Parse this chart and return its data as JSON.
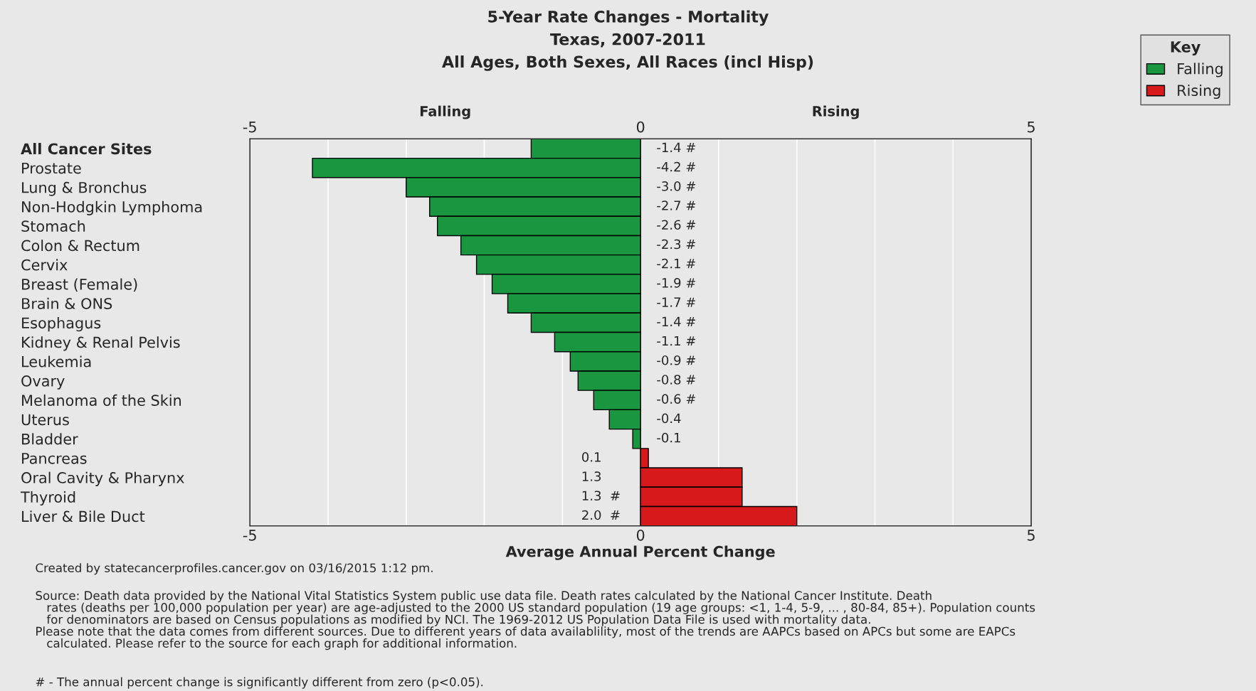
{
  "chart_data": {
    "type": "bar",
    "orientation": "horizontal",
    "title": "5-Year Rate Changes - Mortality\nTexas, 2007-2011\nAll Ages, Both Sexes, All Races (incl Hisp)",
    "xlabel": "Average Annual Percent Change",
    "legend_title": "Key",
    "legend": "top right",
    "grid": "x",
    "categories": [
      "All Cancer Sites",
      "Prostate",
      "Lung & Bronchus",
      "Non-Hodgkin Lymphoma",
      "Stomach",
      "Colon & Rectum",
      "Cervix",
      "Breast (Female)",
      "Brain & ONS",
      "Esophagus",
      "Kidney & Renal Pelvis",
      "Leukemia",
      "Ovary",
      "Melanoma of the Skin",
      "Uterus",
      "Bladder",
      "Pancreas",
      "Oral Cavity & Pharynx",
      "Thyroid",
      "Liver & Bile Duct"
    ],
    "series": [
      {
        "name": "Falling",
        "color": "#1a9641",
        "values": [
          -1.4,
          -4.2,
          -3.0,
          -2.7,
          -2.6,
          -2.3,
          -2.1,
          -1.9,
          -1.7,
          -1.4,
          -1.1,
          -0.9,
          -0.8,
          -0.6,
          -0.4,
          -0.1,
          null,
          null,
          null,
          null
        ],
        "value_labels": [
          "-1.4 #",
          "-4.2 #",
          "-3.0 #",
          "-2.7 #",
          "-2.6 #",
          "-2.3 #",
          "-2.1 #",
          "-1.9 #",
          "-1.7 #",
          "-1.4 #",
          "-1.1 #",
          "-0.9 #",
          "-0.8 #",
          "-0.6 #",
          "-0.4",
          "-0.1",
          null,
          null,
          null,
          null
        ]
      },
      {
        "name": "Rising",
        "color": "#d7191c",
        "values": [
          null,
          null,
          null,
          null,
          null,
          null,
          null,
          null,
          null,
          null,
          null,
          null,
          null,
          null,
          null,
          null,
          0.1,
          1.3,
          1.3,
          2.0
        ],
        "value_labels": [
          null,
          null,
          null,
          null,
          null,
          null,
          null,
          null,
          null,
          null,
          null,
          null,
          null,
          null,
          null,
          null,
          "0.1",
          "1.3",
          "1.3  #",
          "2.0  #"
        ]
      }
    ],
    "xlim": [
      -5,
      5
    ],
    "xticks": [
      -5,
      {
        "value": -4,
        "label": null
      },
      {
        "value": -3,
        "label": null
      },
      {
        "value": -2,
        "label": null
      },
      {
        "value": -1,
        "label": null
      },
      0,
      {
        "value": 1,
        "label": null
      },
      {
        "value": 2,
        "label": null
      },
      {
        "value": 3,
        "label": null
      },
      {
        "value": 4,
        "label": null
      },
      5
    ],
    "x2lim": [
      -5,
      5
    ],
    "x2ticks": [
      -5,
      0,
      5
    ],
    "annotations": [
      "Falling",
      "Rising",
      "Created by statecancerprofiles.cancer.gov on 03/16/2015 1:12 pm.",
      "Source: Death data provided by the National Vital Statistics System public use data file. Death rates calculated by the National Cancer Institute. Death\n   rates (deaths per 100,000 population per year) are age-adjusted to the 2000 US standard population (19 age groups: <1, 1-4, 5-9, ... , 80-84, 85+). Population counts\n   for denominators are based on Census populations as modified by NCI. The 1969-2012 US Population Data File is used with mortality data.\nPlease note that the data comes from different sources. Due to different years of data availablility, most of the trends are AAPCs based on APCs but some are EAPCs\n   calculated. Please refer to the source for each graph for additional information.",
      "# - The annual percent change is significantly different from zero (p<0.05)."
    ]
  }
}
